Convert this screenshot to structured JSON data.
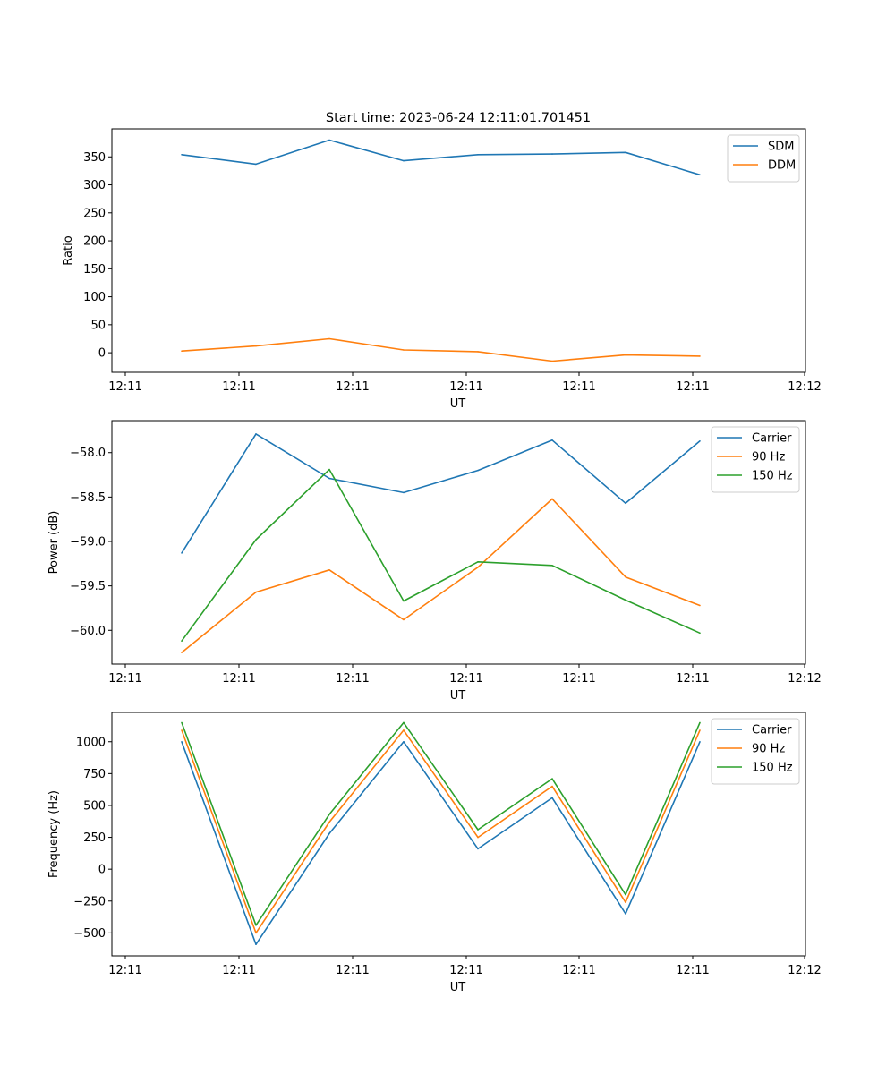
{
  "figure": {
    "title": "Start time: 2023-06-24 12:11:01.701451"
  },
  "colors": {
    "blue": "#1f77b4",
    "orange": "#ff7f0e",
    "green": "#2ca02c"
  },
  "chart_data": [
    {
      "type": "line",
      "title": "Start time: 2023-06-24 12:11:01.701451",
      "xlabel": "UT",
      "ylabel": "Ratio",
      "x_tick_labels": [
        "12:11",
        "12:11",
        "12:11",
        "12:11",
        "12:11",
        "12:11",
        "12:12"
      ],
      "y_ticks": [
        0,
        50,
        100,
        150,
        200,
        250,
        300,
        350
      ],
      "ylim": [
        -35,
        400
      ],
      "grid": false,
      "legend": "top-right",
      "series": [
        {
          "name": "SDM",
          "color": "#1f77b4",
          "values": [
            354,
            337,
            380,
            343,
            354,
            355,
            358,
            318
          ]
        },
        {
          "name": "DDM",
          "color": "#ff7f0e",
          "values": [
            3,
            12,
            25,
            5,
            2,
            -15,
            -4,
            -6
          ]
        }
      ]
    },
    {
      "type": "line",
      "xlabel": "UT",
      "ylabel": "Power (dB)",
      "x_tick_labels": [
        "12:11",
        "12:11",
        "12:11",
        "12:11",
        "12:11",
        "12:11",
        "12:12"
      ],
      "y_ticks": [
        -60.0,
        -59.5,
        -59.0,
        -58.5,
        -58.0
      ],
      "y_tick_labels": [
        "−60.0",
        "−59.5",
        "−59.0",
        "−58.5",
        "−58.0"
      ],
      "ylim": [
        -60.38,
        -57.64
      ],
      "grid": false,
      "legend": "top-right",
      "series": [
        {
          "name": "Carrier",
          "color": "#1f77b4",
          "values": [
            -59.13,
            -57.79,
            -58.29,
            -58.45,
            -58.2,
            -57.86,
            -58.57,
            -57.87
          ]
        },
        {
          "name": "90 Hz",
          "color": "#ff7f0e",
          "values": [
            -60.25,
            -59.57,
            -59.32,
            -59.88,
            -59.29,
            -58.52,
            -59.4,
            -59.72
          ]
        },
        {
          "name": "150 Hz",
          "color": "#2ca02c",
          "values": [
            -60.12,
            -58.98,
            -58.19,
            -59.67,
            -59.23,
            -59.27,
            -59.66,
            -60.03
          ]
        }
      ]
    },
    {
      "type": "line",
      "xlabel": "UT",
      "ylabel": "Frequency (Hz)",
      "x_tick_labels": [
        "12:11",
        "12:11",
        "12:11",
        "12:11",
        "12:11",
        "12:11",
        "12:12"
      ],
      "y_ticks": [
        -500,
        -250,
        0,
        250,
        500,
        750,
        1000
      ],
      "y_tick_labels": [
        "−500",
        "−250",
        "0",
        "250",
        "500",
        "750",
        "1000"
      ],
      "ylim": [
        -680,
        1230
      ],
      "grid": false,
      "legend": "top-right",
      "series": [
        {
          "name": "Carrier",
          "color": "#1f77b4",
          "values": [
            1000,
            -590,
            280,
            1000,
            160,
            560,
            -350,
            1000
          ]
        },
        {
          "name": "90 Hz",
          "color": "#ff7f0e",
          "values": [
            1090,
            -500,
            370,
            1090,
            250,
            650,
            -260,
            1090
          ]
        },
        {
          "name": "150 Hz",
          "color": "#2ca02c",
          "values": [
            1150,
            -440,
            430,
            1150,
            310,
            710,
            -200,
            1150
          ]
        }
      ]
    }
  ]
}
